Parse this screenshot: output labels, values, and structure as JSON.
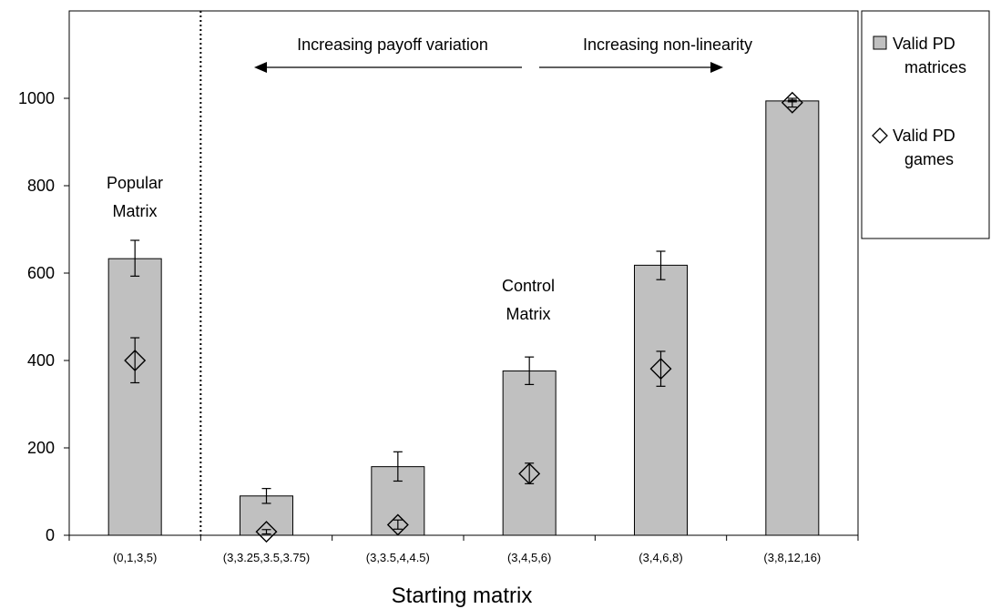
{
  "chart_data": {
    "type": "bar",
    "title": "",
    "xlabel": "Starting matrix",
    "ylabel": "",
    "ylim": [
      0,
      1200
    ],
    "yticks": [
      0,
      200,
      400,
      600,
      800,
      1000
    ],
    "categories": [
      "(0,1,3,5)",
      "(3,3.25,3.5,3.75)",
      "(3,3.5,4,4.5)",
      "(3,4,5,6)",
      "(3,4,6,8)",
      "(3,8,12,16)"
    ],
    "series": [
      {
        "name": "Valid PD matrices",
        "marker": "bar",
        "values": [
          633,
          90,
          157,
          376,
          618,
          994
        ],
        "error_low": [
          593,
          73,
          124,
          345,
          585,
          992
        ],
        "error_high": [
          675,
          107,
          191,
          408,
          650,
          996
        ]
      },
      {
        "name": "Valid PD games",
        "marker": "diamond",
        "values": [
          400,
          8,
          24,
          141,
          381,
          990
        ],
        "error_low": [
          349,
          3,
          14,
          118,
          341,
          980
        ],
        "error_high": [
          452,
          13,
          35,
          165,
          421,
          1000
        ]
      }
    ],
    "legend_position": "right",
    "legend_labels": [
      {
        "symbol": "bar",
        "lines": [
          "Valid PD",
          "matrices"
        ]
      },
      {
        "symbol": "diamond",
        "lines": [
          "Valid PD",
          "games"
        ]
      }
    ],
    "annotations": {
      "popular_label": [
        "Popular",
        "Matrix"
      ],
      "control_label": [
        "Control",
        "Matrix"
      ],
      "left_arrow_label": "Increasing payoff variation",
      "right_arrow_label": "Increasing non-linearity"
    },
    "colors": {
      "bar_fill": "#c0c0c0",
      "stroke": "#000000",
      "background": "#ffffff"
    }
  }
}
